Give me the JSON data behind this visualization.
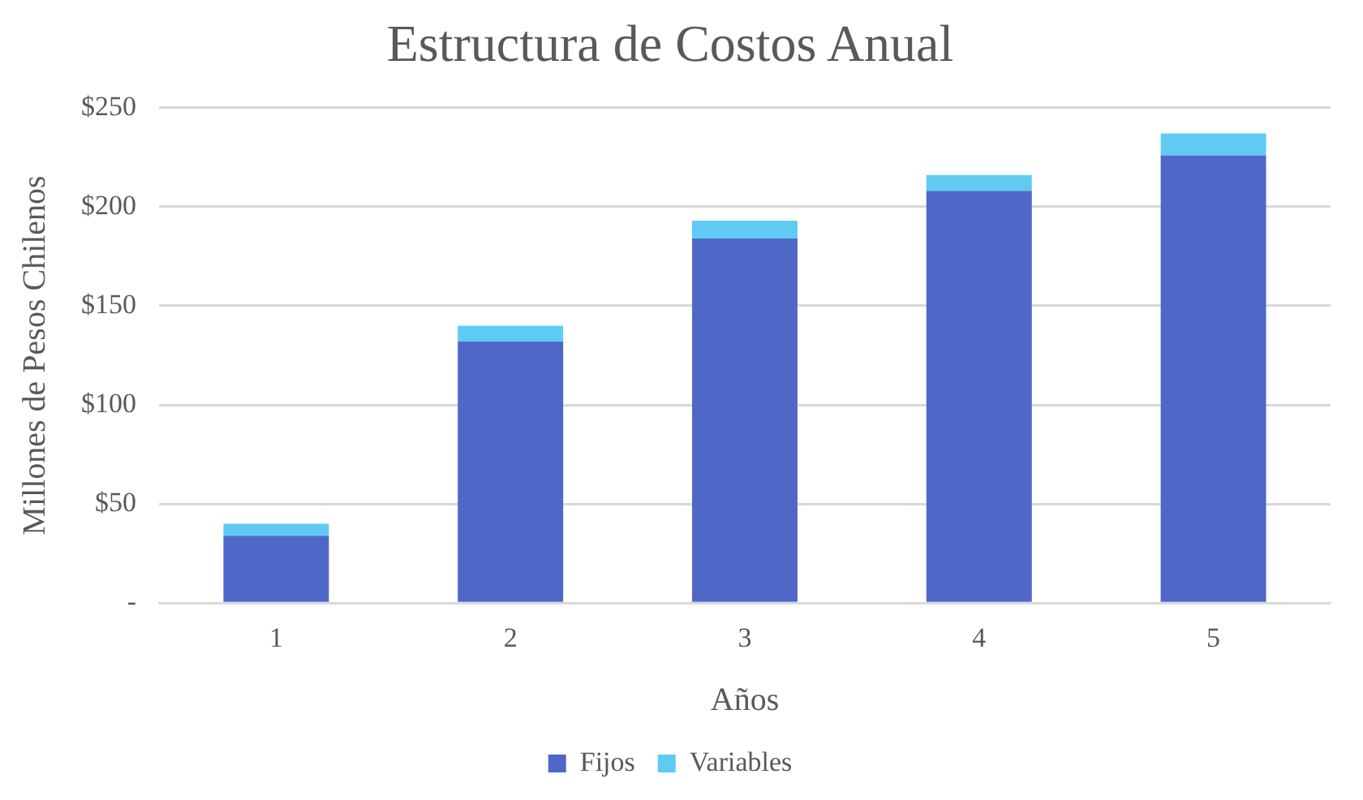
{
  "chart_data": {
    "type": "bar",
    "title": "Estructura de Costos Anual",
    "xlabel": "Años",
    "ylabel": "Millones de Pesos Chilenos",
    "categories": [
      "1",
      "2",
      "3",
      "4",
      "5"
    ],
    "stacked": true,
    "series": [
      {
        "name": "Fijos",
        "color": "#4f68c8",
        "values": [
          34,
          132,
          184,
          208,
          226
        ]
      },
      {
        "name": "Variables",
        "color": "#5fcbf3",
        "values": [
          6,
          8,
          9,
          8,
          11
        ]
      }
    ],
    "ylim": [
      0,
      250
    ],
    "yticks": [
      {
        "value": 0,
        "label": "-"
      },
      {
        "value": 50,
        "label": "$50"
      },
      {
        "value": 100,
        "label": "$100"
      },
      {
        "value": 150,
        "label": "$150"
      },
      {
        "value": 200,
        "label": "$200"
      },
      {
        "value": 250,
        "label": "$250"
      }
    ],
    "grid": "y",
    "legend": "bottom"
  }
}
